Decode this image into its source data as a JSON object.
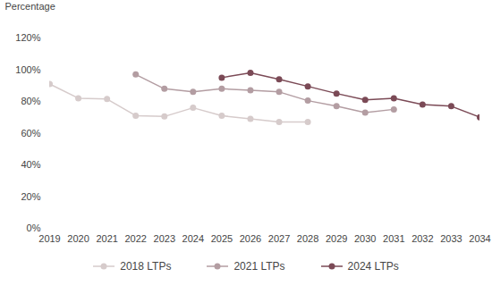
{
  "chart_data": {
    "type": "line",
    "y_label": "Percentage",
    "x": [
      2019,
      2020,
      2021,
      2022,
      2023,
      2024,
      2025,
      2026,
      2027,
      2028,
      2029,
      2030,
      2031,
      2032,
      2033,
      2034
    ],
    "series": [
      {
        "name": "2018 LTPs",
        "color": "#d6cbcb",
        "marker": "circle",
        "values": [
          91,
          82,
          81.5,
          71,
          70.5,
          76,
          71,
          69,
          67,
          67,
          null,
          null,
          null,
          null,
          null,
          null
        ]
      },
      {
        "name": "2021 LTPs",
        "color": "#b39da2",
        "marker": "circle",
        "values": [
          null,
          null,
          null,
          97,
          88,
          86,
          88,
          87,
          86,
          80.5,
          77,
          73,
          75,
          null,
          null,
          null
        ]
      },
      {
        "name": "2024 LTPs",
        "color": "#7b4a56",
        "marker": "circle",
        "values": [
          null,
          null,
          null,
          null,
          null,
          null,
          95,
          98,
          94,
          89.5,
          85,
          81,
          82,
          78,
          77,
          70
        ]
      }
    ],
    "xlim": [
      2019,
      2034
    ],
    "xticks": [
      2019,
      2020,
      2021,
      2022,
      2023,
      2024,
      2025,
      2026,
      2027,
      2028,
      2029,
      2030,
      2031,
      2032,
      2033,
      2034
    ],
    "ylim": [
      0,
      120
    ],
    "yticks": [
      {
        "value": 0,
        "label": "0%"
      },
      {
        "value": 20,
        "label": "20%"
      },
      {
        "value": 40,
        "label": "40%"
      },
      {
        "value": 60,
        "label": "60%"
      },
      {
        "value": 80,
        "label": "80%"
      },
      {
        "value": 100,
        "label": "100%"
      },
      {
        "value": 120,
        "label": "120%"
      }
    ],
    "grid": false,
    "legend": "bottom"
  }
}
